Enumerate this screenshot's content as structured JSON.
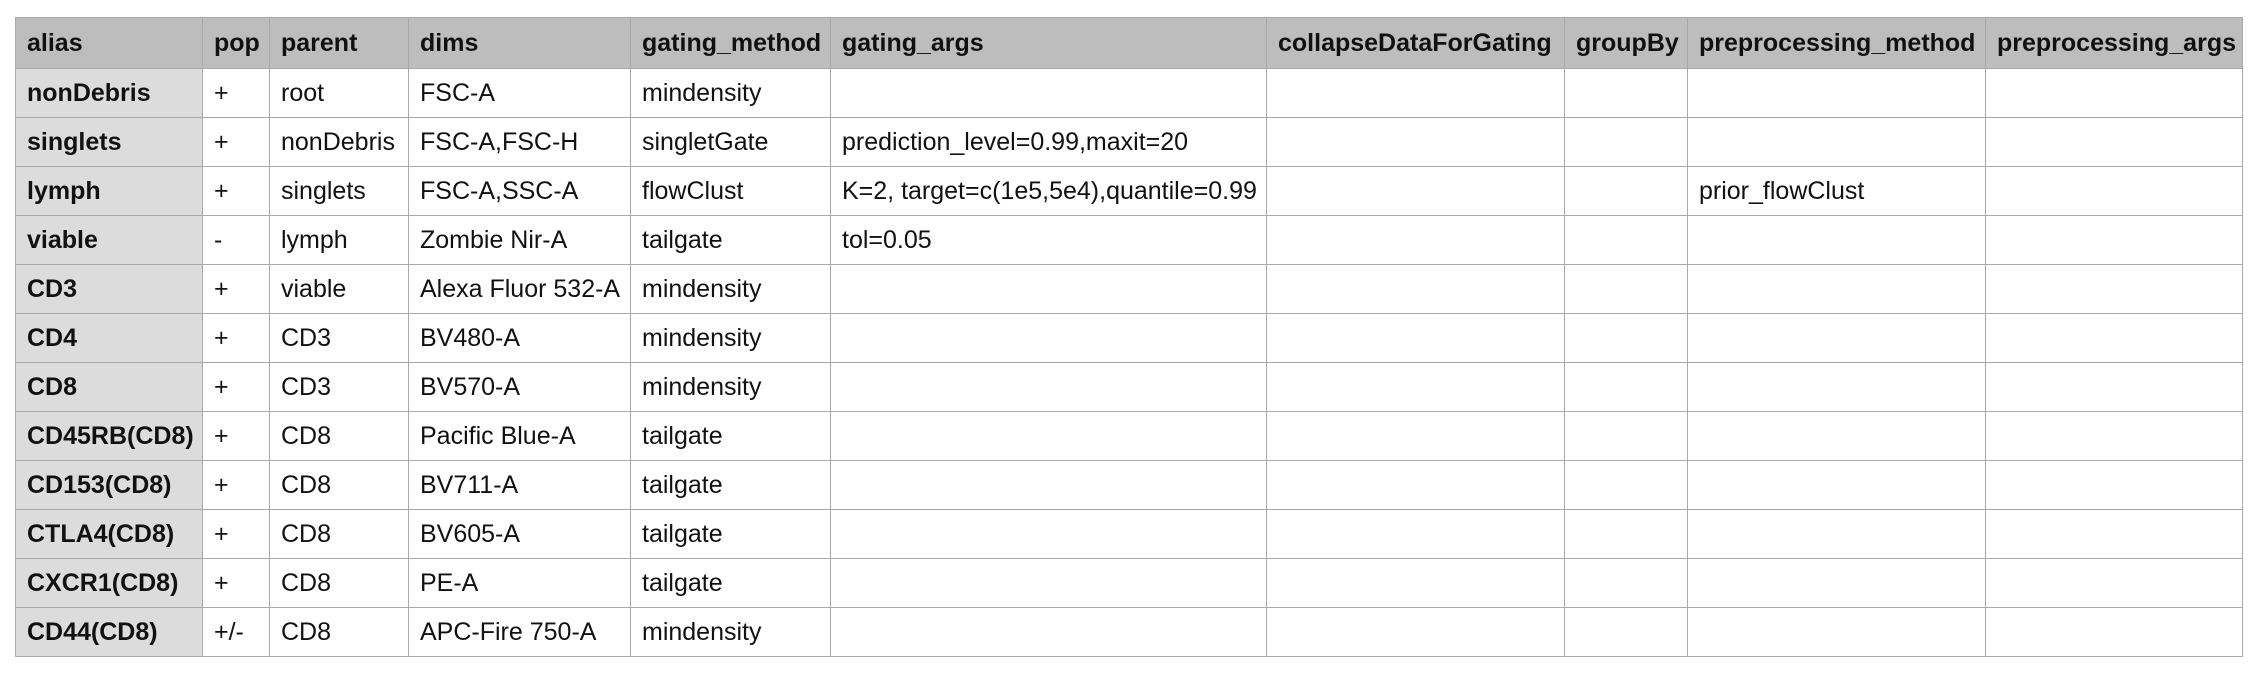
{
  "table": {
    "headers": [
      "alias",
      "pop",
      "parent",
      "dims",
      "gating_method",
      "gating_args",
      "collapseDataForGating",
      "groupBy",
      "preprocessing_method",
      "preprocessing_args"
    ],
    "rows": [
      [
        "nonDebris",
        "+",
        "root",
        "FSC-A",
        "mindensity",
        "",
        "",
        "",
        "",
        ""
      ],
      [
        "singlets",
        "+",
        "nonDebris",
        "FSC-A,FSC-H",
        "singletGate",
        "prediction_level=0.99,maxit=20",
        "",
        "",
        "",
        ""
      ],
      [
        "lymph",
        "+",
        "singlets",
        "FSC-A,SSC-A",
        "flowClust",
        "K=2, target=c(1e5,5e4),quantile=0.99",
        "",
        "",
        "prior_flowClust",
        ""
      ],
      [
        "viable",
        "-",
        "lymph",
        "Zombie Nir-A",
        "tailgate",
        "tol=0.05",
        "",
        "",
        "",
        ""
      ],
      [
        "CD3",
        "+",
        "viable",
        "Alexa Fluor 532-A",
        "mindensity",
        "",
        "",
        "",
        "",
        ""
      ],
      [
        "CD4",
        "+",
        "CD3",
        "BV480-A",
        "mindensity",
        "",
        "",
        "",
        "",
        ""
      ],
      [
        "CD8",
        "+",
        "CD3",
        "BV570-A",
        "mindensity",
        "",
        "",
        "",
        "",
        ""
      ],
      [
        "CD45RB(CD8)",
        "+",
        "CD8",
        "Pacific Blue-A",
        "tailgate",
        "",
        "",
        "",
        "",
        ""
      ],
      [
        "CD153(CD8)",
        "+",
        "CD8",
        "BV711-A",
        "tailgate",
        "",
        "",
        "",
        "",
        ""
      ],
      [
        "CTLA4(CD8)",
        "+",
        "CD8",
        "BV605-A",
        "tailgate",
        "",
        "",
        "",
        "",
        ""
      ],
      [
        "CXCR1(CD8)",
        "+",
        "CD8",
        "PE-A",
        "tailgate",
        "",
        "",
        "",
        "",
        ""
      ],
      [
        "CD44(CD8)",
        "+/-",
        "CD8",
        "APC-Fire 750-A",
        "mindensity",
        "",
        "",
        "",
        "",
        ""
      ]
    ]
  }
}
